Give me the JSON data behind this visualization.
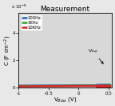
{
  "title": "Measurement",
  "xlabel": "V$_{Bias}$ (V)",
  "ylabel": "C (F cm$^{-2}$)",
  "xlim": [
    -1.0,
    0.55
  ],
  "ylim": [
    0,
    5.5e-08
  ],
  "x_ticks": [
    -1,
    -0.5,
    0,
    0.5
  ],
  "y_ticks": [
    0,
    2e-08,
    4e-08
  ],
  "y_tick_labels": [
    "0",
    "2",
    "4"
  ],
  "legend_labels": [
    "100Hz",
    "1KHz",
    "10KHz"
  ],
  "colors": [
    "#1f5fcc",
    "#2ca02c",
    "#d62728"
  ],
  "vsat_label": "V$_{Sat}$",
  "scale_text": "x 10$^{-8}$",
  "bg_color": "#d8d8d8",
  "fig_color": "#e8e8e8"
}
